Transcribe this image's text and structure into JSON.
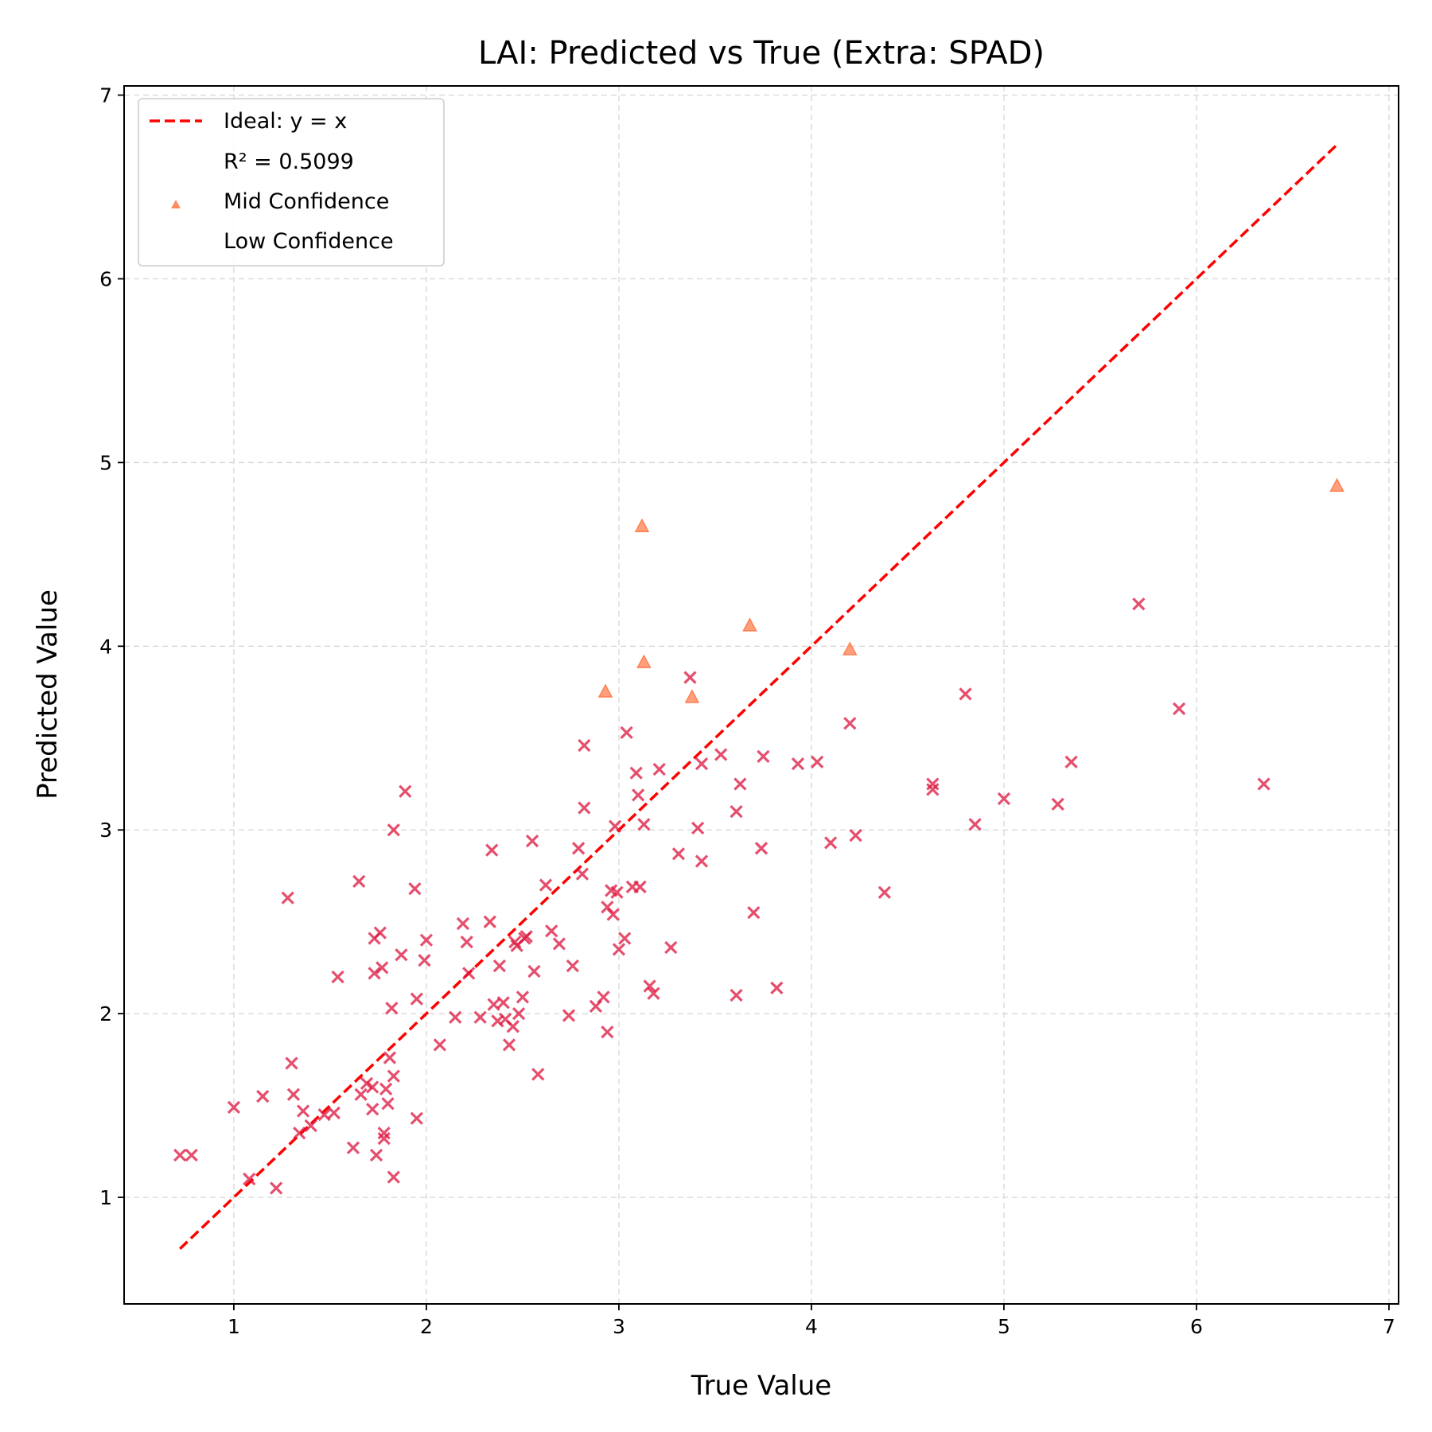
{
  "chart_data": {
    "type": "scatter",
    "title": "LAI: Predicted vs True (Extra: SPAD)",
    "xlabel": "True Value",
    "ylabel": "Predicted Value",
    "xlim": [
      0.43,
      7.05
    ],
    "ylim": [
      0.42,
      7.05
    ],
    "xticks": [
      1,
      2,
      3,
      4,
      5,
      6,
      7
    ],
    "yticks": [
      1,
      2,
      3,
      4,
      5,
      6,
      7
    ],
    "grid": true,
    "legend_position": "upper-left",
    "ideal_line": {
      "label": "Ideal: y = x",
      "from": 0.72,
      "to": 6.73,
      "color": "#ff0000"
    },
    "r2_label": "R² = 0.5099",
    "series": [
      {
        "name": "Mid Confidence",
        "marker": "triangle",
        "color": "#ff7f50",
        "points": [
          [
            2.93,
            3.75
          ],
          [
            3.12,
            4.65
          ],
          [
            3.13,
            3.91
          ],
          [
            3.38,
            3.72
          ],
          [
            3.68,
            4.11
          ],
          [
            4.2,
            3.98
          ],
          [
            6.73,
            4.87
          ]
        ]
      },
      {
        "name": "Low Confidence",
        "marker": "x",
        "color": "#dc143c",
        "points": [
          [
            0.72,
            1.23
          ],
          [
            0.78,
            1.23
          ],
          [
            1.0,
            1.49
          ],
          [
            1.08,
            1.1
          ],
          [
            1.15,
            1.55
          ],
          [
            1.22,
            1.05
          ],
          [
            1.28,
            2.63
          ],
          [
            1.3,
            1.73
          ],
          [
            1.31,
            1.56
          ],
          [
            1.34,
            1.35
          ],
          [
            1.36,
            1.47
          ],
          [
            1.4,
            1.39
          ],
          [
            1.47,
            1.45
          ],
          [
            1.52,
            1.46
          ],
          [
            1.54,
            2.2
          ],
          [
            1.62,
            1.27
          ],
          [
            1.65,
            2.72
          ],
          [
            1.66,
            1.56
          ],
          [
            1.69,
            1.62
          ],
          [
            1.72,
            1.6
          ],
          [
            1.72,
            1.48
          ],
          [
            1.73,
            2.41
          ],
          [
            1.73,
            2.22
          ],
          [
            1.74,
            1.23
          ],
          [
            1.76,
            2.44
          ],
          [
            1.77,
            2.25
          ],
          [
            1.78,
            1.35
          ],
          [
            1.78,
            1.32
          ],
          [
            1.79,
            1.59
          ],
          [
            1.8,
            1.51
          ],
          [
            1.81,
            1.76
          ],
          [
            1.82,
            2.03
          ],
          [
            1.83,
            1.11
          ],
          [
            1.83,
            1.66
          ],
          [
            1.83,
            3.0
          ],
          [
            1.87,
            2.32
          ],
          [
            1.89,
            3.21
          ],
          [
            1.94,
            2.68
          ],
          [
            1.95,
            2.08
          ],
          [
            1.95,
            1.43
          ],
          [
            1.99,
            2.29
          ],
          [
            2.0,
            2.4
          ],
          [
            2.07,
            1.83
          ],
          [
            2.15,
            1.98
          ],
          [
            2.19,
            2.49
          ],
          [
            2.21,
            2.39
          ],
          [
            2.22,
            2.22
          ],
          [
            2.28,
            1.98
          ],
          [
            2.33,
            2.5
          ],
          [
            2.34,
            2.89
          ],
          [
            2.35,
            2.05
          ],
          [
            2.37,
            1.96
          ],
          [
            2.38,
            2.26
          ],
          [
            2.4,
            2.06
          ],
          [
            2.41,
            1.97
          ],
          [
            2.43,
            1.83
          ],
          [
            2.45,
            1.93
          ],
          [
            2.46,
            2.39
          ],
          [
            2.47,
            2.37
          ],
          [
            2.48,
            2.0
          ],
          [
            2.5,
            2.09
          ],
          [
            2.51,
            2.41
          ],
          [
            2.52,
            2.42
          ],
          [
            2.55,
            2.94
          ],
          [
            2.56,
            2.23
          ],
          [
            2.58,
            1.67
          ],
          [
            2.62,
            2.7
          ],
          [
            2.65,
            2.45
          ],
          [
            2.69,
            2.38
          ],
          [
            2.74,
            1.99
          ],
          [
            2.76,
            2.26
          ],
          [
            2.79,
            2.9
          ],
          [
            2.81,
            2.76
          ],
          [
            2.82,
            3.46
          ],
          [
            2.82,
            3.12
          ],
          [
            2.88,
            2.04
          ],
          [
            2.92,
            2.09
          ],
          [
            2.94,
            2.58
          ],
          [
            2.94,
            1.9
          ],
          [
            2.96,
            2.67
          ],
          [
            2.97,
            2.54
          ],
          [
            2.98,
            3.02
          ],
          [
            2.99,
            2.66
          ],
          [
            3.0,
            2.35
          ],
          [
            3.03,
            2.41
          ],
          [
            3.04,
            3.53
          ],
          [
            3.07,
            2.69
          ],
          [
            3.09,
            3.31
          ],
          [
            3.1,
            3.19
          ],
          [
            3.11,
            2.69
          ],
          [
            3.13,
            3.03
          ],
          [
            3.16,
            2.15
          ],
          [
            3.18,
            2.11
          ],
          [
            3.21,
            3.33
          ],
          [
            3.27,
            2.36
          ],
          [
            3.31,
            2.87
          ],
          [
            3.37,
            3.83
          ],
          [
            3.41,
            3.01
          ],
          [
            3.43,
            2.83
          ],
          [
            3.43,
            3.36
          ],
          [
            3.53,
            3.41
          ],
          [
            3.61,
            2.1
          ],
          [
            3.61,
            3.1
          ],
          [
            3.63,
            3.25
          ],
          [
            3.7,
            2.55
          ],
          [
            3.74,
            2.9
          ],
          [
            3.75,
            3.4
          ],
          [
            3.82,
            2.14
          ],
          [
            3.93,
            3.36
          ],
          [
            4.03,
            3.37
          ],
          [
            4.1,
            2.93
          ],
          [
            4.2,
            3.58
          ],
          [
            4.23,
            2.97
          ],
          [
            4.38,
            2.66
          ],
          [
            4.63,
            3.25
          ],
          [
            4.63,
            3.22
          ],
          [
            4.8,
            3.74
          ],
          [
            4.85,
            3.03
          ],
          [
            5.0,
            3.17
          ],
          [
            5.28,
            3.14
          ],
          [
            5.35,
            3.37
          ],
          [
            5.7,
            4.23
          ],
          [
            5.91,
            3.66
          ],
          [
            6.35,
            3.25
          ]
        ]
      }
    ]
  }
}
